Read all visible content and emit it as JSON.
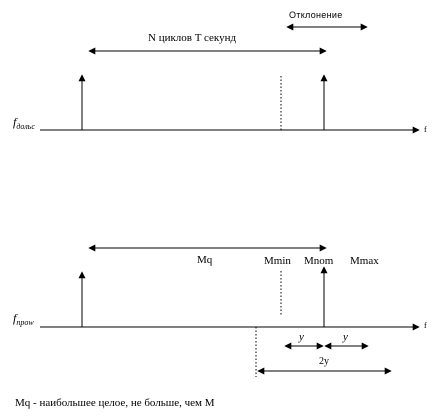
{
  "top": {
    "deviation_label": "Отклонение",
    "cycles_label": "N циклов T секунд",
    "axis_label": "f",
    "axis_name_main": "f",
    "axis_name_sub": "дольс"
  },
  "bottom": {
    "mq_label": "Mq",
    "mmin_label": "Mmin",
    "mnom_label": "Mnom",
    "mmax_label": "Mmax",
    "axis_label": "f",
    "axis_name_main": "f",
    "axis_name_sub": "npow",
    "y_left": "y",
    "y_right": "y",
    "two_y": "2y"
  },
  "footnote": "Mq - наибольшее целое, не больше, чем M"
}
